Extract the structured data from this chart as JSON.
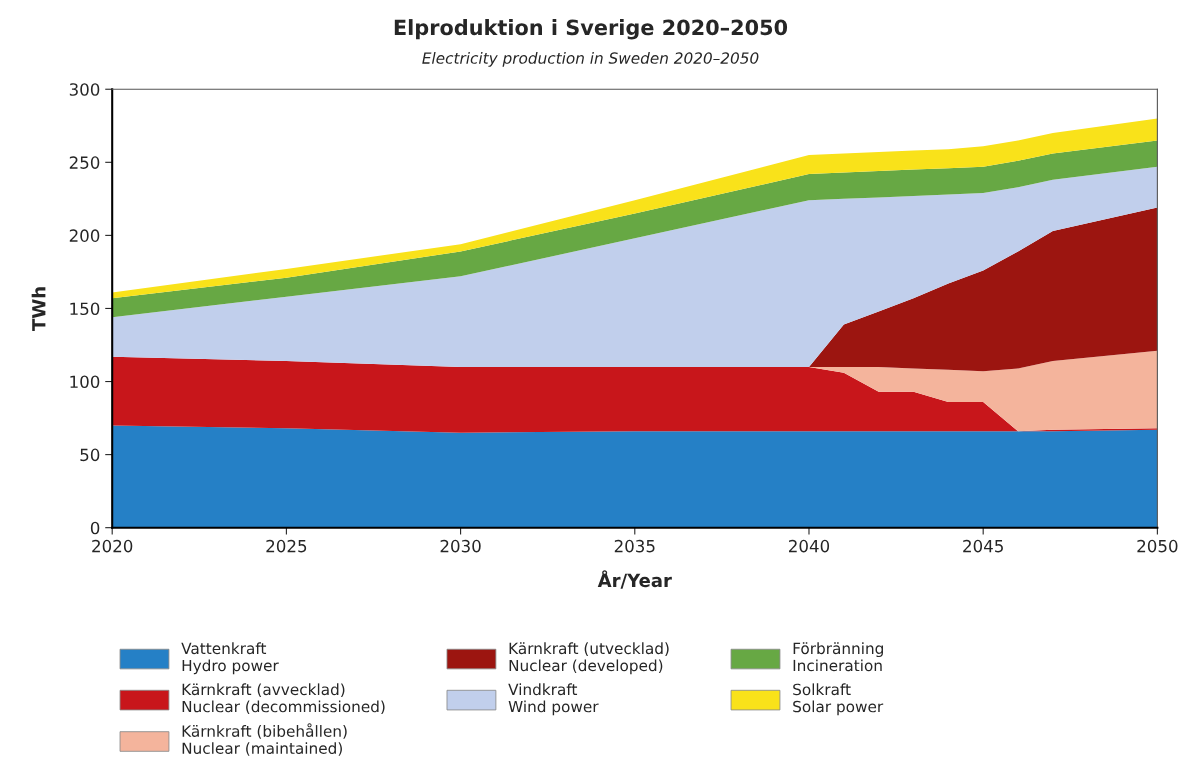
{
  "chart_data": {
    "type": "area",
    "stacked": true,
    "title": "Elproduktion i Sverige 2020–2050",
    "subtitle": "Electricity production in Sweden 2020–2050",
    "xlabel": "År/Year",
    "ylabel": "TWh",
    "x": [
      2020,
      2025,
      2030,
      2035,
      2040,
      2041,
      2042,
      2043,
      2044,
      2045,
      2046,
      2047,
      2050
    ],
    "series": [
      {
        "name": "Vattenkraft\nHydro power",
        "color": "#2580c6",
        "values": [
          70,
          68,
          65,
          66,
          66,
          66,
          66,
          66,
          66,
          66,
          66,
          66,
          67
        ]
      },
      {
        "name": "Kärnkraft (avvecklad)\nNuclear (decommissioned)",
        "color": "#c8161b",
        "values": [
          47,
          46,
          45,
          44,
          44,
          40,
          27,
          27,
          20,
          20,
          0,
          1,
          1
        ]
      },
      {
        "name": "Kärnkraft (bibehållen)\nNuclear (maintained)",
        "color": "#f4b49c",
        "values": [
          0,
          0,
          0,
          0,
          0,
          4,
          17,
          16,
          22,
          21,
          43,
          47,
          53
        ]
      },
      {
        "name": "Kärnkraft (utvecklad)\nNuclear (developed)",
        "color": "#9c1510",
        "values": [
          0,
          0,
          0,
          0,
          0,
          29,
          38,
          48,
          59,
          69,
          80,
          89,
          98
        ]
      },
      {
        "name": "Vindkraft\nWind power",
        "color": "#c1cfec",
        "values": [
          27,
          44,
          62,
          88,
          114,
          86,
          78,
          70,
          61,
          53,
          44,
          35,
          28
        ]
      },
      {
        "name": "Förbränning\nIncineration",
        "color": "#67a844",
        "values": [
          13,
          13,
          17,
          17,
          18,
          18,
          18,
          18,
          18,
          18,
          18,
          18,
          18
        ]
      },
      {
        "name": "Solkraft\nSolar power",
        "color": "#f9e21a",
        "values": [
          4,
          6,
          5,
          9,
          13,
          13,
          13,
          13,
          13,
          14,
          14,
          14,
          15
        ]
      }
    ],
    "xlim": [
      2020,
      2050
    ],
    "xticks": [
      2020,
      2025,
      2030,
      2035,
      2040,
      2045,
      2050
    ],
    "ylim": [
      0,
      300
    ],
    "yticks": [
      0,
      50,
      100,
      150,
      200,
      250,
      300
    ],
    "grid": false,
    "legend": "bottom"
  }
}
